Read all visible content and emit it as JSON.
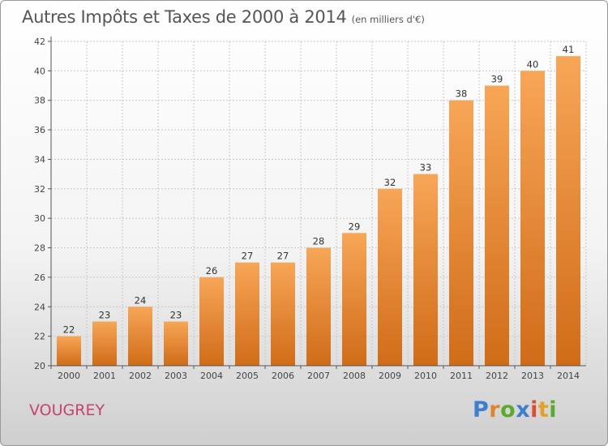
{
  "header": {
    "title": "Autres Impôts et Taxes de 2000 à 2014",
    "subtitle": "(en milliers d'€)"
  },
  "footer": {
    "commune": "VOUGREY",
    "logo": {
      "letters": [
        "P",
        "r",
        "o",
        "x",
        "i",
        "t",
        "i"
      ],
      "colors": [
        "#3a7fd0",
        "#e2842a",
        "#5aaa2c",
        "#3a7fd0",
        "#e24a2a",
        "#e2a22a",
        "#5aaa2c"
      ]
    }
  },
  "colors": {
    "bar_top": "#f7a657",
    "bar_bottom": "#d06c18",
    "grid": "#c8c8c8",
    "axis": "#555555",
    "commune": "#c9416e"
  },
  "chart_data": {
    "type": "bar",
    "categories": [
      "2000",
      "2001",
      "2002",
      "2003",
      "2004",
      "2005",
      "2006",
      "2007",
      "2008",
      "2009",
      "2010",
      "2011",
      "2012",
      "2013",
      "2014"
    ],
    "values": [
      22,
      23,
      24,
      23,
      26,
      27,
      27,
      28,
      29,
      32,
      33,
      38,
      39,
      40,
      41
    ],
    "yticks": [
      20,
      22,
      24,
      26,
      28,
      30,
      32,
      34,
      36,
      38,
      40,
      42
    ],
    "ylim": [
      20,
      42
    ],
    "grid": true,
    "data_labels": true
  }
}
